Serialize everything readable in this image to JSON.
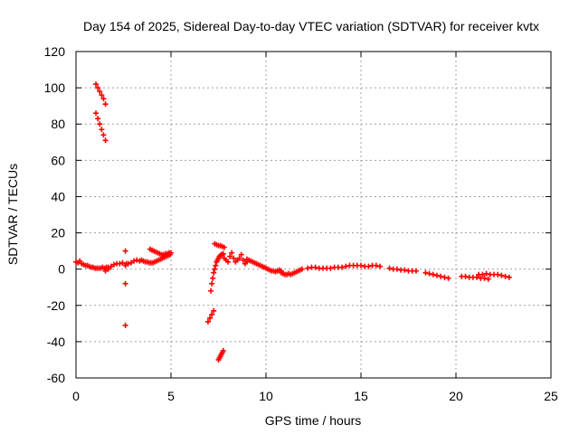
{
  "chart_data": {
    "type": "scatter",
    "title": "Day 154 of 2025, Sidereal Day-to-day VTEC variation (SDTVAR) for receiver kvtx",
    "xlabel": "GPS time / hours",
    "ylabel": "SDTVAR / TECUs",
    "xlim": [
      0,
      25
    ],
    "ylim": [
      -60,
      120
    ],
    "xticks": [
      0,
      5,
      10,
      15,
      20,
      25
    ],
    "yticks": [
      -60,
      -40,
      -20,
      0,
      20,
      40,
      60,
      80,
      100,
      120
    ],
    "grid": true,
    "marker": "+",
    "series_color": "#ff0000",
    "segments": [
      {
        "name": "track-high-1",
        "points": [
          [
            1.05,
            102
          ],
          [
            1.15,
            100
          ],
          [
            1.25,
            98
          ],
          [
            1.35,
            96
          ],
          [
            1.45,
            94
          ],
          [
            1.55,
            91
          ]
        ]
      },
      {
        "name": "track-high-2",
        "points": [
          [
            1.05,
            86
          ],
          [
            1.15,
            83
          ],
          [
            1.25,
            80
          ],
          [
            1.35,
            77
          ],
          [
            1.45,
            74
          ],
          [
            1.55,
            71
          ]
        ]
      },
      {
        "name": "track-start",
        "points": [
          [
            0.0,
            4
          ],
          [
            0.1,
            3.5
          ],
          [
            0.2,
            4.5
          ],
          [
            0.3,
            3
          ],
          [
            0.4,
            2.5
          ],
          [
            0.5,
            2
          ],
          [
            0.6,
            2
          ],
          [
            0.7,
            1.5
          ],
          [
            0.8,
            1
          ],
          [
            0.9,
            1
          ],
          [
            1.0,
            0.5
          ],
          [
            1.1,
            0.5
          ],
          [
            1.2,
            0.5
          ],
          [
            1.3,
            0.5
          ],
          [
            1.4,
            1
          ],
          [
            1.5,
            0.5
          ],
          [
            1.6,
            1
          ],
          [
            1.7,
            1
          ]
        ]
      },
      {
        "name": "track-morning-a",
        "points": [
          [
            1.55,
            -1
          ],
          [
            1.7,
            0
          ],
          [
            1.85,
            1.5
          ],
          [
            2.0,
            2.5
          ],
          [
            2.15,
            3
          ],
          [
            2.3,
            3
          ],
          [
            2.45,
            3.5
          ],
          [
            2.6,
            2
          ],
          [
            2.75,
            3
          ],
          [
            2.9,
            3.5
          ],
          [
            3.05,
            4.5
          ],
          [
            3.2,
            5
          ],
          [
            3.35,
            4.5
          ]
        ]
      },
      {
        "name": "track-morning-b",
        "points": [
          [
            3.45,
            5
          ],
          [
            3.55,
            4.5
          ],
          [
            3.65,
            4
          ],
          [
            3.75,
            4
          ],
          [
            3.85,
            3.5
          ],
          [
            3.95,
            3.5
          ],
          [
            4.05,
            3.5
          ],
          [
            4.15,
            4
          ],
          [
            4.25,
            4.5
          ],
          [
            4.35,
            5
          ],
          [
            4.45,
            5.5
          ],
          [
            4.55,
            6
          ],
          [
            4.65,
            6.5
          ],
          [
            4.75,
            7
          ],
          [
            4.85,
            7.5
          ],
          [
            4.95,
            8
          ]
        ]
      },
      {
        "name": "track-morning-c",
        "points": [
          [
            3.9,
            11
          ],
          [
            4.0,
            10.5
          ],
          [
            4.1,
            10
          ],
          [
            4.2,
            9.5
          ],
          [
            4.3,
            9
          ],
          [
            4.4,
            8.5
          ],
          [
            4.5,
            8
          ],
          [
            4.6,
            8
          ],
          [
            4.7,
            8.5
          ],
          [
            4.8,
            8.5
          ],
          [
            4.9,
            9
          ],
          [
            5.0,
            9
          ]
        ]
      },
      {
        "name": "track-outliers",
        "points": [
          [
            2.6,
            10
          ],
          [
            2.6,
            -8
          ],
          [
            2.6,
            -31
          ],
          [
            2.65,
            3
          ]
        ]
      },
      {
        "name": "track-dip-low",
        "points": [
          [
            6.95,
            -29
          ],
          [
            7.05,
            -27
          ],
          [
            7.15,
            -25
          ],
          [
            7.25,
            -23
          ]
        ]
      },
      {
        "name": "track-dip-recovery",
        "points": [
          [
            7.1,
            -12
          ],
          [
            7.15,
            -8
          ],
          [
            7.2,
            -5
          ],
          [
            7.25,
            -2
          ],
          [
            7.3,
            0
          ],
          [
            7.35,
            2
          ],
          [
            7.4,
            4
          ],
          [
            7.45,
            5
          ],
          [
            7.5,
            6
          ],
          [
            7.55,
            7
          ],
          [
            7.6,
            7.5
          ],
          [
            7.65,
            8
          ],
          [
            7.7,
            8
          ],
          [
            7.75,
            8.5
          ]
        ]
      },
      {
        "name": "track-dip-steep",
        "points": [
          [
            7.5,
            -50
          ],
          [
            7.55,
            -49
          ],
          [
            7.6,
            -48
          ],
          [
            7.65,
            -47
          ],
          [
            7.7,
            -46
          ],
          [
            7.75,
            -45
          ]
        ]
      },
      {
        "name": "track-peak-cluster",
        "points": [
          [
            7.3,
            14
          ],
          [
            7.4,
            13.5
          ],
          [
            7.5,
            13
          ],
          [
            7.6,
            13
          ],
          [
            7.7,
            12.5
          ],
          [
            7.8,
            12
          ]
        ]
      },
      {
        "name": "track-midday-a",
        "points": [
          [
            7.8,
            6
          ],
          [
            7.9,
            5
          ],
          [
            8.0,
            4
          ],
          [
            8.1,
            7
          ],
          [
            8.2,
            9
          ],
          [
            8.3,
            6
          ],
          [
            8.4,
            4
          ],
          [
            8.5,
            5
          ],
          [
            8.6,
            6
          ],
          [
            8.7,
            8
          ],
          [
            8.8,
            5
          ],
          [
            8.9,
            3
          ],
          [
            9.0,
            4
          ]
        ]
      },
      {
        "name": "track-midday-b",
        "points": [
          [
            9.0,
            5.5
          ],
          [
            9.1,
            5
          ],
          [
            9.2,
            4.5
          ],
          [
            9.3,
            4
          ],
          [
            9.4,
            3.5
          ],
          [
            9.5,
            3
          ],
          [
            9.6,
            2.5
          ],
          [
            9.7,
            2
          ],
          [
            9.8,
            1.5
          ],
          [
            9.9,
            1
          ],
          [
            10.0,
            0.5
          ],
          [
            10.1,
            0
          ],
          [
            10.2,
            -0.5
          ],
          [
            10.3,
            -1
          ],
          [
            10.4,
            -1
          ],
          [
            10.5,
            -1.5
          ],
          [
            10.6,
            -1
          ],
          [
            10.7,
            -0.5
          ],
          [
            10.8,
            -1
          ]
        ]
      },
      {
        "name": "track-midday-c",
        "points": [
          [
            10.8,
            -2
          ],
          [
            10.9,
            -2.5
          ],
          [
            11.0,
            -3
          ],
          [
            11.1,
            -3
          ],
          [
            11.2,
            -2.5
          ],
          [
            11.3,
            -3
          ],
          [
            11.4,
            -2.5
          ],
          [
            11.5,
            -2
          ],
          [
            11.6,
            -1.5
          ],
          [
            11.7,
            -1
          ],
          [
            11.8,
            -0.5
          ],
          [
            11.9,
            0
          ]
        ]
      },
      {
        "name": "track-afternoon",
        "points": [
          [
            12.2,
            0.5
          ],
          [
            12.4,
            1
          ],
          [
            12.6,
            1
          ],
          [
            12.8,
            0.5
          ],
          [
            13.0,
            0.5
          ],
          [
            13.2,
            0.5
          ],
          [
            13.4,
            0.5
          ],
          [
            13.6,
            1
          ],
          [
            13.8,
            1
          ],
          [
            14.0,
            1
          ],
          [
            14.2,
            1.5
          ],
          [
            14.4,
            2
          ],
          [
            14.6,
            2
          ],
          [
            14.8,
            2
          ],
          [
            15.0,
            2
          ],
          [
            15.2,
            1.5
          ],
          [
            15.4,
            1.5
          ],
          [
            15.6,
            2
          ],
          [
            15.8,
            2
          ],
          [
            16.0,
            1.5
          ]
        ]
      },
      {
        "name": "track-late-a",
        "points": [
          [
            16.5,
            0.5
          ],
          [
            16.7,
            0
          ],
          [
            16.9,
            0
          ],
          [
            17.1,
            -0.5
          ],
          [
            17.3,
            -0.5
          ],
          [
            17.5,
            -1
          ],
          [
            17.7,
            -1
          ],
          [
            17.9,
            -1
          ]
        ]
      },
      {
        "name": "track-late-b",
        "points": [
          [
            18.4,
            -2
          ],
          [
            18.6,
            -2.5
          ],
          [
            18.8,
            -3
          ],
          [
            19.0,
            -3.5
          ],
          [
            19.2,
            -4
          ],
          [
            19.4,
            -4.5
          ],
          [
            19.6,
            -5
          ]
        ]
      },
      {
        "name": "track-late-c",
        "points": [
          [
            20.3,
            -4
          ],
          [
            20.5,
            -4
          ],
          [
            20.7,
            -4.5
          ],
          [
            20.9,
            -4.5
          ],
          [
            21.1,
            -4.5
          ],
          [
            21.3,
            -5
          ],
          [
            21.5,
            -5
          ],
          [
            21.7,
            -5.5
          ]
        ]
      },
      {
        "name": "track-late-d",
        "points": [
          [
            21.2,
            -3
          ],
          [
            21.4,
            -3
          ],
          [
            21.6,
            -2.5
          ],
          [
            21.8,
            -3
          ],
          [
            22.0,
            -3
          ],
          [
            22.2,
            -3
          ],
          [
            22.4,
            -3.5
          ],
          [
            22.6,
            -4
          ],
          [
            22.8,
            -4.5
          ]
        ]
      }
    ]
  }
}
